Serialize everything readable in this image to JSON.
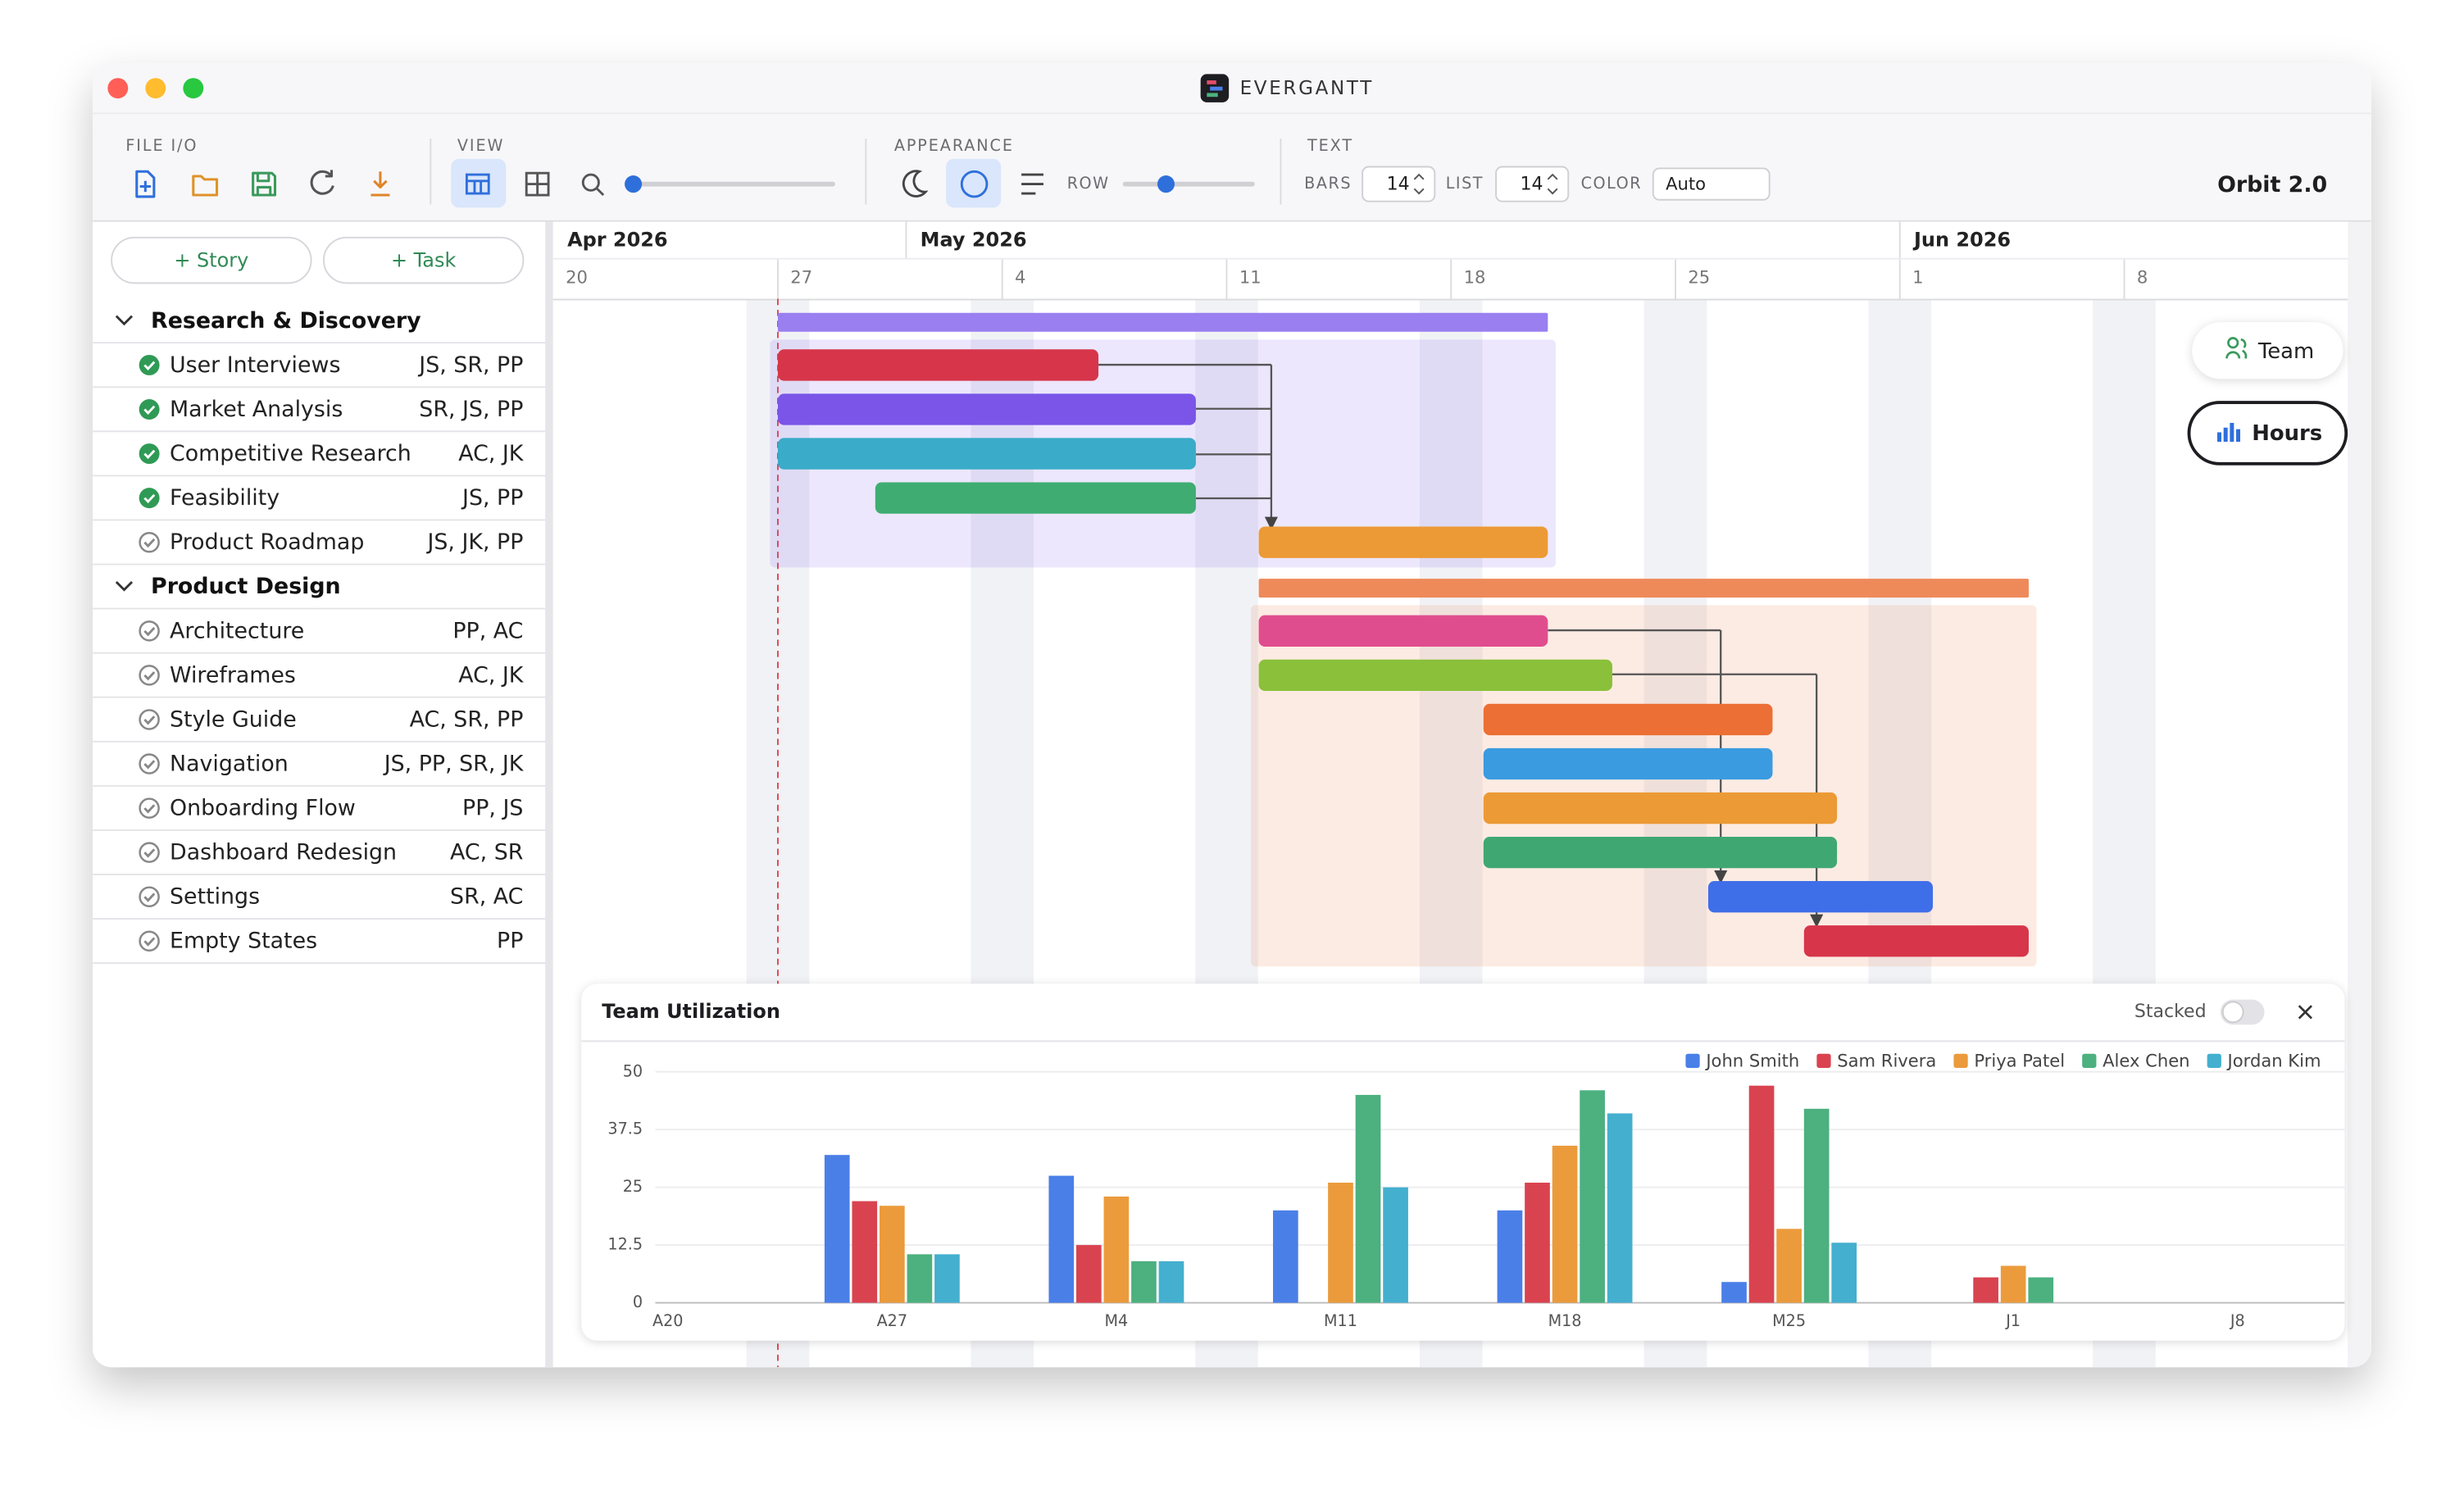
{
  "window": {
    "title": "EVERGANTT"
  },
  "toolbar": {
    "file_label": "FILE I/O",
    "view_label": "VIEW",
    "appearance_label": "APPEARANCE",
    "text_label": "TEXT",
    "row_label": "ROW",
    "bars_label": "BARS",
    "bars_value": 14,
    "list_label": "LIST",
    "list_value": 14,
    "color_label": "COLOR",
    "color_value": "Auto",
    "version": "Orbit 2.0"
  },
  "sidebar": {
    "buttons": [
      "+ Story",
      "+ Task"
    ],
    "groups": [
      {
        "name": "Research & Discovery",
        "tasks": [
          {
            "name": "User Interviews",
            "assignees": "JS, SR, PP",
            "done": true
          },
          {
            "name": "Market Analysis",
            "assignees": "SR, JS, PP",
            "done": true
          },
          {
            "name": "Competitive Research",
            "assignees": "AC, JK",
            "done": true
          },
          {
            "name": "Feasibility",
            "assignees": "JS, PP",
            "done": true
          },
          {
            "name": "Product Roadmap",
            "assignees": "JS, JK, PP",
            "done": false
          }
        ]
      },
      {
        "name": "Product Design",
        "tasks": [
          {
            "name": "Architecture",
            "assignees": "PP, AC",
            "done": false
          },
          {
            "name": "Wireframes",
            "assignees": "AC, JK",
            "done": false
          },
          {
            "name": "Style Guide",
            "assignees": "AC, SR, PP",
            "done": false
          },
          {
            "name": "Navigation",
            "assignees": "JS, PP, SR, JK",
            "done": false
          },
          {
            "name": "Onboarding Flow",
            "assignees": "PP, JS",
            "done": false
          },
          {
            "name": "Dashboard Redesign",
            "assignees": "AC, SR",
            "done": false
          },
          {
            "name": "Settings",
            "assignees": "SR, AC",
            "done": false
          },
          {
            "name": "Empty States",
            "assignees": "PP",
            "done": false
          }
        ]
      }
    ]
  },
  "timeline": {
    "months": [
      "Apr 2026",
      "May 2026",
      "Jun 2026"
    ],
    "weeks": [
      20,
      27,
      4,
      11,
      18,
      25,
      1,
      8
    ]
  },
  "side_buttons": [
    "Team",
    "Hours"
  ],
  "chart_data": {
    "type": "bar",
    "title": "Team Utilization",
    "stacked_label": "Stacked",
    "stacked": false,
    "categories": [
      "A20",
      "A27",
      "M4",
      "M11",
      "M18",
      "M25",
      "J1",
      "J8"
    ],
    "series": [
      {
        "name": "John Smith",
        "color": "#4a7fe8",
        "values": [
          0,
          32,
          27.5,
          20,
          20,
          4.5,
          0,
          0
        ]
      },
      {
        "name": "Sam Rivera",
        "color": "#d9434f",
        "values": [
          0,
          22,
          12.5,
          0,
          26,
          47,
          5.5,
          0
        ]
      },
      {
        "name": "Priya Patel",
        "color": "#eb9b3c",
        "values": [
          0,
          21,
          23,
          26,
          34,
          16,
          8,
          0
        ]
      },
      {
        "name": "Alex Chen",
        "color": "#4cb07f",
        "values": [
          0,
          10.5,
          9,
          45,
          46,
          42,
          5.5,
          0
        ]
      },
      {
        "name": "Jordan Kim",
        "color": "#44afcf",
        "values": [
          0,
          10.5,
          9,
          25,
          41,
          13,
          0,
          0
        ]
      }
    ],
    "ylim": [
      0,
      50
    ],
    "yticks": [
      0,
      12.5,
      25,
      37.5,
      50
    ],
    "grid": true,
    "legend": "top-right"
  }
}
